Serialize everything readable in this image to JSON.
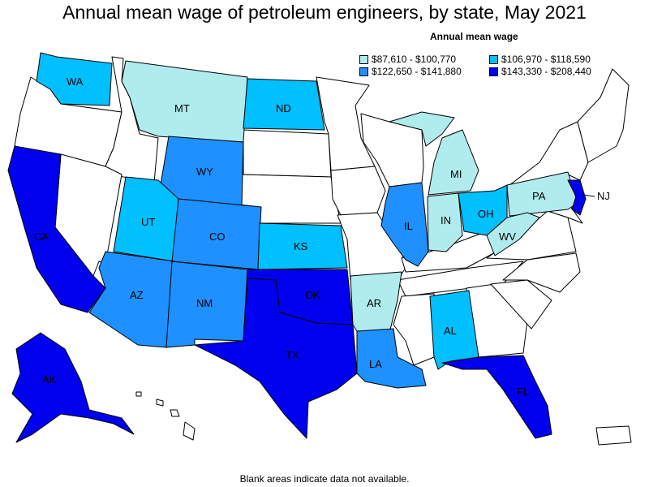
{
  "title": "Annual mean wage of petroleum engineers, by state, May 2021",
  "legend": {
    "title": "Annual mean wage",
    "items": [
      {
        "label": "$87,610 - $100,770",
        "color": "#b0ecee"
      },
      {
        "label": "$106,970 - $118,590",
        "color": "#00c0ff"
      },
      {
        "label": "$122,650 - $141,880",
        "color": "#1e90ff"
      },
      {
        "label": "$143,330 - $208,440",
        "color": "#0000ee"
      }
    ]
  },
  "colors": {
    "no_data": "#ffffff",
    "tier1": "#b0ecee",
    "tier2": "#00c0ff",
    "tier3": "#1e90ff",
    "tier4": "#0000ee"
  },
  "states": [
    {
      "abbr": "WA",
      "tier": 2
    },
    {
      "abbr": "MT",
      "tier": 1
    },
    {
      "abbr": "ND",
      "tier": 2
    },
    {
      "abbr": "WY",
      "tier": 3
    },
    {
      "abbr": "UT",
      "tier": 2
    },
    {
      "abbr": "CO",
      "tier": 3
    },
    {
      "abbr": "KS",
      "tier": 2
    },
    {
      "abbr": "CA",
      "tier": 4
    },
    {
      "abbr": "AZ",
      "tier": 3
    },
    {
      "abbr": "NM",
      "tier": 3
    },
    {
      "abbr": "OK",
      "tier": 4
    },
    {
      "abbr": "TX",
      "tier": 4
    },
    {
      "abbr": "AR",
      "tier": 1
    },
    {
      "abbr": "LA",
      "tier": 3
    },
    {
      "abbr": "AL",
      "tier": 2
    },
    {
      "abbr": "FL",
      "tier": 4
    },
    {
      "abbr": "IL",
      "tier": 3
    },
    {
      "abbr": "IN",
      "tier": 1
    },
    {
      "abbr": "MI",
      "tier": 1
    },
    {
      "abbr": "OH",
      "tier": 2
    },
    {
      "abbr": "PA",
      "tier": 1
    },
    {
      "abbr": "WV",
      "tier": 1
    },
    {
      "abbr": "NJ",
      "tier": 4
    },
    {
      "abbr": "AK",
      "tier": 4
    }
  ],
  "footnote": "Blank areas indicate data not available."
}
